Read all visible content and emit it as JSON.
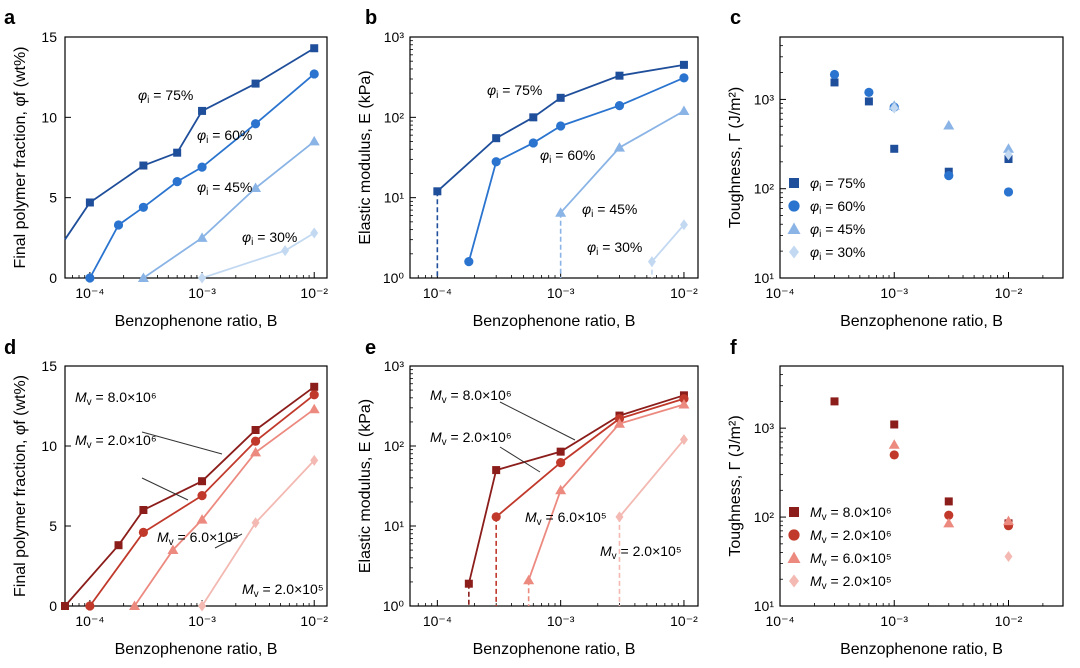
{
  "colors": {
    "blue": [
      "#1f4e9a",
      "#2a74cf",
      "#8ab4e6",
      "#c3d9f2"
    ],
    "red": [
      "#8b1d1a",
      "#c0392b",
      "#ec8a80",
      "#f3b9b2"
    ]
  },
  "chart_data": [
    {
      "panel_letter": "a",
      "type": "line",
      "title": "",
      "xlabel": "Benzophenone ratio, B",
      "ylabel": "Final polymer fraction, φf (wt%)",
      "xscale": "log",
      "xlim": [
        6e-05,
        0.013
      ],
      "yscale": "linear",
      "ylim": [
        0,
        15
      ],
      "yticks": [
        "0",
        "5",
        "10",
        "15"
      ],
      "series": [
        {
          "name": "φi = 75%",
          "marker": "square",
          "points": [
            [
              0.0001,
              4.7
            ],
            [
              0.0003,
              7.0
            ],
            [
              0.0006,
              7.8
            ],
            [
              0.001,
              10.4
            ],
            [
              0.003,
              12.1
            ],
            [
              0.01,
              14.3
            ]
          ],
          "extend_left": 2.4
        },
        {
          "name": "φi = 60%",
          "marker": "circle",
          "points": [
            [
              0.0001,
              0
            ],
            [
              0.00018,
              3.3
            ],
            [
              0.0003,
              4.4
            ],
            [
              0.0006,
              6.0
            ],
            [
              0.001,
              6.9
            ],
            [
              0.003,
              9.6
            ],
            [
              0.01,
              12.7
            ]
          ]
        },
        {
          "name": "φi = 45%",
          "marker": "triangle",
          "points": [
            [
              0.0003,
              0
            ],
            [
              0.001,
              2.5
            ],
            [
              0.003,
              5.6
            ],
            [
              0.01,
              8.5
            ]
          ]
        },
        {
          "name": "φi = 30%",
          "marker": "diamond",
          "points": [
            [
              0.001,
              0
            ],
            [
              0.0055,
              1.7
            ],
            [
              0.01,
              2.8
            ]
          ]
        }
      ],
      "annotations": [
        "φi = 75%",
        "φi = 60%",
        "φi = 45%",
        "φi = 30%"
      ]
    },
    {
      "panel_letter": "b",
      "type": "line",
      "title": "",
      "xlabel": "Benzophenone ratio, B",
      "ylabel": "Elastic modulus, E (kPa)",
      "xscale": "log",
      "xlim": [
        6e-05,
        0.013
      ],
      "yscale": "log",
      "ylim": [
        1,
        1000
      ],
      "series": [
        {
          "name": "φi = 75%",
          "marker": "square",
          "points": [
            [
              0.0001,
              12
            ],
            [
              0.0003,
              55
            ],
            [
              0.0006,
              100
            ],
            [
              0.001,
              175
            ],
            [
              0.003,
              330
            ],
            [
              0.01,
              450
            ]
          ],
          "drop": 0.0001
        },
        {
          "name": "φi = 60%",
          "marker": "circle",
          "points": [
            [
              0.00018,
              1.6
            ],
            [
              0.0003,
              28
            ],
            [
              0.0006,
              48
            ],
            [
              0.001,
              78
            ],
            [
              0.003,
              140
            ],
            [
              0.01,
              310
            ]
          ]
        },
        {
          "name": "φi = 45%",
          "marker": "triangle",
          "points": [
            [
              0.001,
              6.5
            ],
            [
              0.003,
              42
            ],
            [
              0.01,
              120
            ]
          ],
          "drop": 0.001
        },
        {
          "name": "φi = 30%",
          "marker": "diamond",
          "points": [
            [
              0.0055,
              1.6
            ],
            [
              0.01,
              4.6
            ]
          ],
          "drop": 0.0055
        }
      ],
      "annotations": [
        "φi = 75%",
        "φi = 60%",
        "φi = 45%",
        "φi = 30%"
      ]
    },
    {
      "panel_letter": "c",
      "type": "scatter",
      "title": "",
      "xlabel": "Benzophenone ratio, B",
      "ylabel": "Toughness, Γ (J/m²)",
      "xscale": "log",
      "xlim": [
        0.0001,
        0.03
      ],
      "yscale": "log",
      "ylim": [
        10,
        5000
      ],
      "legend": "lower-left",
      "series": [
        {
          "name": "φi = 75%",
          "marker": "square",
          "points": [
            [
              0.0003,
              1550
            ],
            [
              0.0006,
              950
            ],
            [
              0.001,
              280
            ],
            [
              0.003,
              155
            ],
            [
              0.01,
              215
            ]
          ]
        },
        {
          "name": "φi = 60%",
          "marker": "circle",
          "points": [
            [
              0.0003,
              1900
            ],
            [
              0.0006,
              1200
            ],
            [
              0.001,
              820
            ],
            [
              0.003,
              140
            ],
            [
              0.01,
              92
            ]
          ]
        },
        {
          "name": "φi = 45%",
          "marker": "triangle",
          "points": [
            [
              0.001,
              850
            ],
            [
              0.003,
              510
            ],
            [
              0.01,
              280
            ]
          ]
        },
        {
          "name": "φi = 30%",
          "marker": "diamond",
          "points": [
            [
              0.001,
              800
            ],
            [
              0.01,
              240
            ]
          ]
        }
      ]
    },
    {
      "panel_letter": "d",
      "type": "line",
      "title": "",
      "xlabel": "Benzophenone ratio, B",
      "ylabel": "Final polymer fraction, φf (wt%)",
      "xscale": "log",
      "xlim": [
        6e-05,
        0.013
      ],
      "yscale": "linear",
      "ylim": [
        0,
        15
      ],
      "yticks": [
        "0",
        "5",
        "10",
        "15"
      ],
      "series": [
        {
          "name": "Mv = 8.0×10⁶",
          "marker": "square",
          "points": [
            [
              6e-05,
              0
            ],
            [
              0.00018,
              3.8
            ],
            [
              0.0003,
              6.0
            ],
            [
              0.001,
              7.8
            ],
            [
              0.003,
              11.0
            ],
            [
              0.01,
              13.7
            ]
          ]
        },
        {
          "name": "Mv = 2.0×10⁶",
          "marker": "circle",
          "points": [
            [
              0.0001,
              0
            ],
            [
              0.0003,
              4.6
            ],
            [
              0.001,
              6.9
            ],
            [
              0.003,
              10.3
            ],
            [
              0.01,
              13.2
            ]
          ]
        },
        {
          "name": "Mv = 6.0×10⁵",
          "marker": "triangle",
          "points": [
            [
              0.00025,
              0
            ],
            [
              0.00055,
              3.5
            ],
            [
              0.001,
              5.4
            ],
            [
              0.003,
              9.6
            ],
            [
              0.01,
              12.3
            ]
          ]
        },
        {
          "name": "Mv = 2.0×10⁵",
          "marker": "diamond",
          "points": [
            [
              0.001,
              0
            ],
            [
              0.003,
              5.2
            ],
            [
              0.01,
              9.1
            ]
          ]
        }
      ],
      "annotations": [
        "Mv = 8.0×10⁶",
        "Mv = 2.0×10⁶",
        "Mv = 6.0×10⁵",
        "Mv = 2.0×10⁵"
      ]
    },
    {
      "panel_letter": "e",
      "type": "line",
      "title": "",
      "xlabel": "Benzophenone ratio, B",
      "ylabel": "Elastic modulus, E (kPa)",
      "xscale": "log",
      "xlim": [
        6e-05,
        0.013
      ],
      "yscale": "log",
      "ylim": [
        1,
        1000
      ],
      "series": [
        {
          "name": "Mv = 8.0×10⁶",
          "marker": "square",
          "points": [
            [
              0.00018,
              1.9
            ],
            [
              0.0003,
              50
            ],
            [
              0.001,
              85
            ],
            [
              0.003,
              240
            ],
            [
              0.01,
              430
            ]
          ],
          "drop": 0.00018
        },
        {
          "name": "Mv = 2.0×10⁶",
          "marker": "circle",
          "points": [
            [
              0.0003,
              13
            ],
            [
              0.001,
              62
            ],
            [
              0.003,
              220
            ],
            [
              0.01,
              390
            ]
          ],
          "drop": 0.0003
        },
        {
          "name": "Mv = 6.0×10⁵",
          "marker": "triangle",
          "points": [
            [
              0.00055,
              2.1
            ],
            [
              0.001,
              28
            ],
            [
              0.003,
              190
            ],
            [
              0.01,
              330
            ]
          ],
          "drop": 0.00055
        },
        {
          "name": "Mv = 2.0×10⁵",
          "marker": "diamond",
          "points": [
            [
              0.003,
              13
            ],
            [
              0.01,
              120
            ]
          ],
          "drop": 0.003
        }
      ],
      "annotations": [
        "Mv = 8.0×10⁶",
        "Mv = 2.0×10⁶",
        "Mv = 6.0×10⁵",
        "Mv = 2.0×10⁵"
      ]
    },
    {
      "panel_letter": "f",
      "type": "scatter",
      "title": "",
      "xlabel": "Benzophenone ratio, B",
      "ylabel": "Toughness, Γ (J/m²)",
      "xscale": "log",
      "xlim": [
        0.0001,
        0.03
      ],
      "yscale": "log",
      "ylim": [
        10,
        5000
      ],
      "legend": "lower-left",
      "series": [
        {
          "name": "Mv = 8.0×10⁶",
          "marker": "square",
          "points": [
            [
              0.0003,
              2000
            ],
            [
              0.001,
              1100
            ],
            [
              0.003,
              150
            ],
            [
              0.01,
              85
            ]
          ]
        },
        {
          "name": "Mv = 2.0×10⁶",
          "marker": "circle",
          "points": [
            [
              0.001,
              500
            ],
            [
              0.003,
              105
            ],
            [
              0.01,
              80
            ]
          ]
        },
        {
          "name": "Mv = 6.0×10⁵",
          "marker": "triangle",
          "points": [
            [
              0.001,
              650
            ],
            [
              0.003,
              85
            ],
            [
              0.01,
              90
            ]
          ]
        },
        {
          "name": "Mv = 2.0×10⁵",
          "marker": "diamond",
          "points": [
            [
              0.01,
              36
            ]
          ]
        }
      ]
    }
  ],
  "xtick_labels": [
    "10⁻⁴",
    "10⁻³",
    "10⁻²"
  ],
  "log_tick_labels_e": [
    "10⁰",
    "10¹",
    "10²",
    "10³"
  ],
  "log_tick_labels_g": [
    "10¹",
    "10²",
    "10³"
  ]
}
